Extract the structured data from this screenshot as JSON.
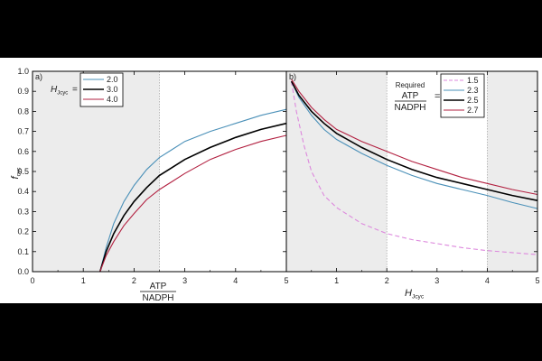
{
  "chart_data": [
    {
      "type": "line",
      "panel_label": "a)",
      "xlabel": "",
      "xlabel_fraction": {
        "numerator": "ATP",
        "denominator": "NADPH"
      },
      "ylabel_main": "f",
      "ylabel_sub": "cyc",
      "xlim": [
        0,
        5
      ],
      "ylim": [
        0,
        1.0
      ],
      "xticks": [
        "0",
        "1",
        "2",
        "3",
        "4",
        "5"
      ],
      "yticks": [
        "0.0",
        "0.1",
        "0.2",
        "0.3",
        "0.4",
        "0.5",
        "0.6",
        "0.7",
        "0.8",
        "0.9",
        "1.0"
      ],
      "shaded_regions": [
        [
          0,
          2.5
        ]
      ],
      "vertical_dotted": [
        2.5
      ],
      "legend": {
        "position": "top-left",
        "title_main": "H",
        "title_sub": "Jcyc",
        "title_suffix": "="
      },
      "series": [
        {
          "name": "2.0",
          "color": "#4a90b8",
          "x": [
            1.33,
            1.45,
            1.6,
            1.8,
            2.0,
            2.25,
            2.5,
            2.75,
            3.0,
            3.5,
            4.0,
            4.5,
            5.0
          ],
          "y": [
            0.0,
            0.12,
            0.24,
            0.35,
            0.43,
            0.51,
            0.57,
            0.61,
            0.65,
            0.7,
            0.74,
            0.78,
            0.81
          ]
        },
        {
          "name": "3.0",
          "color": "#000000",
          "x": [
            1.33,
            1.45,
            1.6,
            1.8,
            2.0,
            2.25,
            2.5,
            2.75,
            3.0,
            3.5,
            4.0,
            4.5,
            5.0
          ],
          "y": [
            0.0,
            0.1,
            0.19,
            0.28,
            0.35,
            0.42,
            0.48,
            0.52,
            0.56,
            0.62,
            0.67,
            0.71,
            0.74
          ]
        },
        {
          "name": "4.0",
          "color": "#b22040",
          "x": [
            1.33,
            1.45,
            1.6,
            1.8,
            2.0,
            2.25,
            2.5,
            2.75,
            3.0,
            3.5,
            4.0,
            4.5,
            5.0
          ],
          "y": [
            0.0,
            0.08,
            0.15,
            0.23,
            0.29,
            0.36,
            0.41,
            0.45,
            0.49,
            0.56,
            0.61,
            0.65,
            0.68
          ]
        }
      ]
    },
    {
      "type": "line",
      "panel_label": "b)",
      "xlabel_main": "H",
      "xlabel_sub": "Jcyc",
      "xlim": [
        0,
        5
      ],
      "ylim": [
        0,
        1.0
      ],
      "xticks": [
        "0",
        "1",
        "2",
        "3",
        "4",
        "5"
      ],
      "shaded_regions": [
        [
          0,
          2
        ],
        [
          4,
          5
        ]
      ],
      "vertical_dotted": [
        2,
        4
      ],
      "legend": {
        "position": "top-right",
        "title_top": "Required",
        "title_fraction": {
          "numerator": "ATP",
          "denominator": "NADPH"
        },
        "title_suffix": "="
      },
      "series": [
        {
          "name": "1.5",
          "color": "#dd88dd",
          "dashed": true,
          "x": [
            0.1,
            0.2,
            0.35,
            0.5,
            0.75,
            1.0,
            1.5,
            2.0,
            2.5,
            3.0,
            3.5,
            4.0,
            4.5,
            5.0
          ],
          "y": [
            0.95,
            0.8,
            0.63,
            0.5,
            0.38,
            0.32,
            0.24,
            0.19,
            0.16,
            0.14,
            0.12,
            0.105,
            0.095,
            0.085
          ]
        },
        {
          "name": "2.3",
          "color": "#4a90b8",
          "x": [
            0.1,
            0.25,
            0.5,
            0.75,
            1.0,
            1.5,
            2.0,
            2.5,
            3.0,
            3.5,
            4.0,
            4.5,
            5.0
          ],
          "y": [
            0.95,
            0.87,
            0.78,
            0.71,
            0.66,
            0.59,
            0.53,
            0.48,
            0.44,
            0.41,
            0.38,
            0.345,
            0.315
          ]
        },
        {
          "name": "2.5",
          "color": "#000000",
          "x": [
            0.1,
            0.25,
            0.5,
            0.75,
            1.0,
            1.5,
            2.0,
            2.5,
            3.0,
            3.5,
            4.0,
            4.5,
            5.0
          ],
          "y": [
            0.95,
            0.88,
            0.8,
            0.74,
            0.69,
            0.62,
            0.56,
            0.51,
            0.47,
            0.44,
            0.41,
            0.38,
            0.355
          ]
        },
        {
          "name": "2.7",
          "color": "#b22040",
          "x": [
            0.1,
            0.25,
            0.5,
            0.75,
            1.0,
            1.5,
            2.0,
            2.5,
            3.0,
            3.5,
            4.0,
            4.5,
            5.0
          ],
          "y": [
            0.96,
            0.9,
            0.82,
            0.76,
            0.71,
            0.65,
            0.6,
            0.55,
            0.51,
            0.47,
            0.44,
            0.41,
            0.385
          ]
        }
      ]
    }
  ]
}
